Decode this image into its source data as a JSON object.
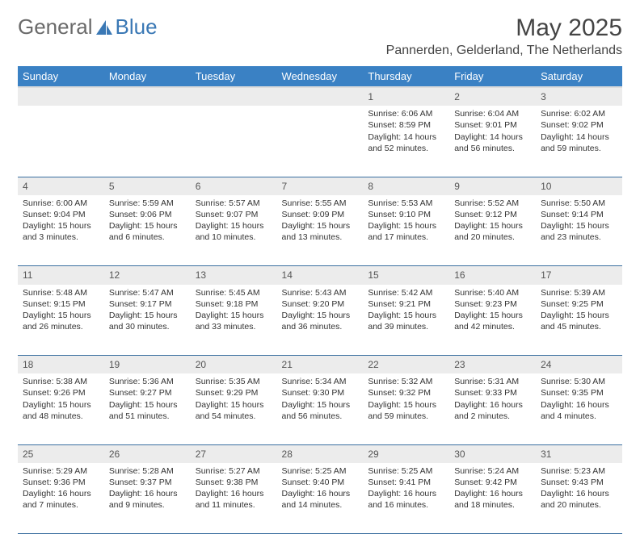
{
  "brand": {
    "part1": "General",
    "part2": "Blue"
  },
  "title": "May 2025",
  "location": "Pannerden, Gelderland, The Netherlands",
  "day_headers": [
    "Sunday",
    "Monday",
    "Tuesday",
    "Wednesday",
    "Thursday",
    "Friday",
    "Saturday"
  ],
  "colors": {
    "header_bg": "#3a81c4",
    "header_text": "#ffffff",
    "daynum_bg": "#ececec",
    "row_divider": "#3a6fa0",
    "text": "#333333",
    "brand_gray": "#6a6a6a",
    "brand_blue": "#3a78b5"
  },
  "weeks": [
    [
      null,
      null,
      null,
      null,
      {
        "n": "1",
        "sr": "6:06 AM",
        "ss": "8:59 PM",
        "dl": "14 hours and 52 minutes."
      },
      {
        "n": "2",
        "sr": "6:04 AM",
        "ss": "9:01 PM",
        "dl": "14 hours and 56 minutes."
      },
      {
        "n": "3",
        "sr": "6:02 AM",
        "ss": "9:02 PM",
        "dl": "14 hours and 59 minutes."
      }
    ],
    [
      {
        "n": "4",
        "sr": "6:00 AM",
        "ss": "9:04 PM",
        "dl": "15 hours and 3 minutes."
      },
      {
        "n": "5",
        "sr": "5:59 AM",
        "ss": "9:06 PM",
        "dl": "15 hours and 6 minutes."
      },
      {
        "n": "6",
        "sr": "5:57 AM",
        "ss": "9:07 PM",
        "dl": "15 hours and 10 minutes."
      },
      {
        "n": "7",
        "sr": "5:55 AM",
        "ss": "9:09 PM",
        "dl": "15 hours and 13 minutes."
      },
      {
        "n": "8",
        "sr": "5:53 AM",
        "ss": "9:10 PM",
        "dl": "15 hours and 17 minutes."
      },
      {
        "n": "9",
        "sr": "5:52 AM",
        "ss": "9:12 PM",
        "dl": "15 hours and 20 minutes."
      },
      {
        "n": "10",
        "sr": "5:50 AM",
        "ss": "9:14 PM",
        "dl": "15 hours and 23 minutes."
      }
    ],
    [
      {
        "n": "11",
        "sr": "5:48 AM",
        "ss": "9:15 PM",
        "dl": "15 hours and 26 minutes."
      },
      {
        "n": "12",
        "sr": "5:47 AM",
        "ss": "9:17 PM",
        "dl": "15 hours and 30 minutes."
      },
      {
        "n": "13",
        "sr": "5:45 AM",
        "ss": "9:18 PM",
        "dl": "15 hours and 33 minutes."
      },
      {
        "n": "14",
        "sr": "5:43 AM",
        "ss": "9:20 PM",
        "dl": "15 hours and 36 minutes."
      },
      {
        "n": "15",
        "sr": "5:42 AM",
        "ss": "9:21 PM",
        "dl": "15 hours and 39 minutes."
      },
      {
        "n": "16",
        "sr": "5:40 AM",
        "ss": "9:23 PM",
        "dl": "15 hours and 42 minutes."
      },
      {
        "n": "17",
        "sr": "5:39 AM",
        "ss": "9:25 PM",
        "dl": "15 hours and 45 minutes."
      }
    ],
    [
      {
        "n": "18",
        "sr": "5:38 AM",
        "ss": "9:26 PM",
        "dl": "15 hours and 48 minutes."
      },
      {
        "n": "19",
        "sr": "5:36 AM",
        "ss": "9:27 PM",
        "dl": "15 hours and 51 minutes."
      },
      {
        "n": "20",
        "sr": "5:35 AM",
        "ss": "9:29 PM",
        "dl": "15 hours and 54 minutes."
      },
      {
        "n": "21",
        "sr": "5:34 AM",
        "ss": "9:30 PM",
        "dl": "15 hours and 56 minutes."
      },
      {
        "n": "22",
        "sr": "5:32 AM",
        "ss": "9:32 PM",
        "dl": "15 hours and 59 minutes."
      },
      {
        "n": "23",
        "sr": "5:31 AM",
        "ss": "9:33 PM",
        "dl": "16 hours and 2 minutes."
      },
      {
        "n": "24",
        "sr": "5:30 AM",
        "ss": "9:35 PM",
        "dl": "16 hours and 4 minutes."
      }
    ],
    [
      {
        "n": "25",
        "sr": "5:29 AM",
        "ss": "9:36 PM",
        "dl": "16 hours and 7 minutes."
      },
      {
        "n": "26",
        "sr": "5:28 AM",
        "ss": "9:37 PM",
        "dl": "16 hours and 9 minutes."
      },
      {
        "n": "27",
        "sr": "5:27 AM",
        "ss": "9:38 PM",
        "dl": "16 hours and 11 minutes."
      },
      {
        "n": "28",
        "sr": "5:25 AM",
        "ss": "9:40 PM",
        "dl": "16 hours and 14 minutes."
      },
      {
        "n": "29",
        "sr": "5:25 AM",
        "ss": "9:41 PM",
        "dl": "16 hours and 16 minutes."
      },
      {
        "n": "30",
        "sr": "5:24 AM",
        "ss": "9:42 PM",
        "dl": "16 hours and 18 minutes."
      },
      {
        "n": "31",
        "sr": "5:23 AM",
        "ss": "9:43 PM",
        "dl": "16 hours and 20 minutes."
      }
    ]
  ],
  "labels": {
    "sunrise": "Sunrise: ",
    "sunset": "Sunset: ",
    "daylight": "Daylight: "
  }
}
